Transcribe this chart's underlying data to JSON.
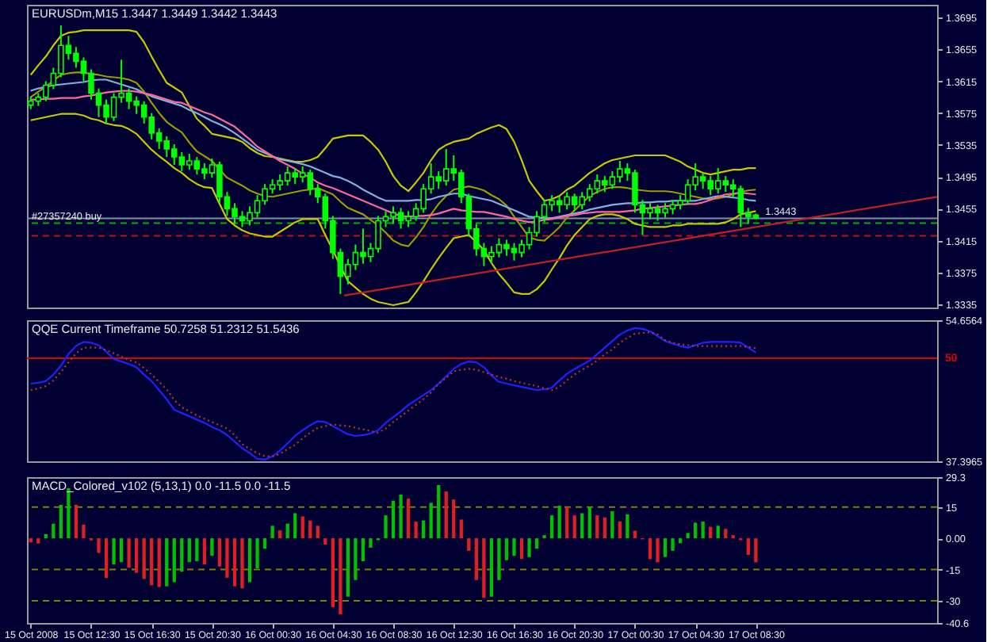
{
  "chart_data": [
    {
      "type": "candlestick",
      "title": "EURUSDm,M15 1.3447 1.3449 1.3442 1.3443",
      "color": "#00ff00",
      "x": [
        "2008-10-15T08:30",
        "2008-10-15T09:00",
        "2008-10-15T09:30",
        "2008-10-15T10:00",
        "2008-10-15T10:30",
        "2008-10-15T11:00",
        "2008-10-15T11:30",
        "2008-10-15T12:00",
        "2008-10-15T12:30",
        "2008-10-15T13:00",
        "2008-10-15T13:30",
        "2008-10-15T14:00",
        "2008-10-15T14:30",
        "2008-10-15T15:00",
        "2008-10-15T15:30",
        "2008-10-15T16:00",
        "2008-10-15T16:30",
        "2008-10-15T17:00",
        "2008-10-15T17:30",
        "2008-10-15T18:00",
        "2008-10-15T18:30",
        "2008-10-15T19:00",
        "2008-10-15T19:30",
        "2008-10-15T20:00",
        "2008-10-15T20:30",
        "2008-10-15T21:00",
        "2008-10-15T21:30",
        "2008-10-15T22:00",
        "2008-10-15T22:30",
        "2008-10-15T23:00",
        "2008-10-15T23:30",
        "2008-10-16T00:00",
        "2008-10-16T00:30",
        "2008-10-16T01:00",
        "2008-10-16T01:30",
        "2008-10-16T02:00",
        "2008-10-16T02:30",
        "2008-10-16T03:00",
        "2008-10-16T03:30",
        "2008-10-16T04:00",
        "2008-10-16T04:30",
        "2008-10-16T05:00",
        "2008-10-16T05:30",
        "2008-10-16T06:00",
        "2008-10-16T06:30",
        "2008-10-16T07:00",
        "2008-10-16T07:30",
        "2008-10-16T08:00",
        "2008-10-16T08:30",
        "2008-10-16T09:00",
        "2008-10-16T09:30",
        "2008-10-16T10:00",
        "2008-10-16T10:30",
        "2008-10-16T11:00",
        "2008-10-16T11:30",
        "2008-10-16T12:00",
        "2008-10-16T12:30",
        "2008-10-16T13:00",
        "2008-10-16T13:30",
        "2008-10-16T14:00",
        "2008-10-16T14:30",
        "2008-10-16T15:00",
        "2008-10-16T15:30",
        "2008-10-16T16:00",
        "2008-10-16T16:30",
        "2008-10-16T17:00",
        "2008-10-16T17:30",
        "2008-10-16T18:00",
        "2008-10-16T18:30",
        "2008-10-16T19:00",
        "2008-10-16T19:30",
        "2008-10-16T20:00",
        "2008-10-16T20:30",
        "2008-10-16T21:00",
        "2008-10-16T21:30",
        "2008-10-16T22:00",
        "2008-10-16T22:30",
        "2008-10-16T23:00",
        "2008-10-16T23:30",
        "2008-10-17T00:00",
        "2008-10-17T00:30",
        "2008-10-17T01:00",
        "2008-10-17T01:30",
        "2008-10-17T02:00",
        "2008-10-17T02:30",
        "2008-10-17T03:00",
        "2008-10-17T03:30",
        "2008-10-17T04:00",
        "2008-10-17T04:30",
        "2008-10-17T05:00",
        "2008-10-17T05:30",
        "2008-10-17T06:00",
        "2008-10-17T06:30",
        "2008-10-17T07:00",
        "2008-10-17T07:30",
        "2008-10-17T08:00",
        "2008-10-17T08:30"
      ],
      "ohlc": [
        [
          1.3585,
          1.3596,
          1.358,
          1.359
        ],
        [
          1.359,
          1.36,
          1.3584,
          1.3595
        ],
        [
          1.3595,
          1.3615,
          1.359,
          1.361
        ],
        [
          1.361,
          1.3632,
          1.3605,
          1.3625
        ],
        [
          1.3625,
          1.3685,
          1.362,
          1.366
        ],
        [
          1.366,
          1.3672,
          1.3642,
          1.365
        ],
        [
          1.365,
          1.3658,
          1.3632,
          1.364
        ],
        [
          1.364,
          1.3645,
          1.3615,
          1.3625
        ],
        [
          1.3625,
          1.363,
          1.3592,
          1.36
        ],
        [
          1.36,
          1.3606,
          1.357,
          1.3585
        ],
        [
          1.3585,
          1.3592,
          1.3562,
          1.357
        ],
        [
          1.357,
          1.36,
          1.3565,
          1.3595
        ],
        [
          1.3595,
          1.3642,
          1.3588,
          1.36
        ],
        [
          1.36,
          1.3606,
          1.358,
          1.359
        ],
        [
          1.359,
          1.3596,
          1.3574,
          1.3585
        ],
        [
          1.3585,
          1.359,
          1.3562,
          1.357
        ],
        [
          1.357,
          1.3575,
          1.3542,
          1.355
        ],
        [
          1.355,
          1.3556,
          1.353,
          1.354
        ],
        [
          1.354,
          1.3546,
          1.352,
          1.353
        ],
        [
          1.353,
          1.3536,
          1.351,
          1.352
        ],
        [
          1.352,
          1.3526,
          1.3502,
          1.351
        ],
        [
          1.351,
          1.3524,
          1.3504,
          1.3515
        ],
        [
          1.3515,
          1.352,
          1.3498,
          1.3505
        ],
        [
          1.3505,
          1.3512,
          1.3492,
          1.35
        ],
        [
          1.35,
          1.3518,
          1.3494,
          1.351
        ],
        [
          1.351,
          1.3514,
          1.3462,
          1.347
        ],
        [
          1.347,
          1.3476,
          1.3446,
          1.3455
        ],
        [
          1.3455,
          1.3462,
          1.3436,
          1.3445
        ],
        [
          1.3445,
          1.3452,
          1.3432,
          1.344
        ],
        [
          1.344,
          1.3458,
          1.3434,
          1.345
        ],
        [
          1.345,
          1.3472,
          1.3444,
          1.3465
        ],
        [
          1.3465,
          1.3486,
          1.346,
          1.348
        ],
        [
          1.348,
          1.3492,
          1.3474,
          1.3485
        ],
        [
          1.3485,
          1.3498,
          1.3478,
          1.349
        ],
        [
          1.349,
          1.3508,
          1.3484,
          1.35
        ],
        [
          1.35,
          1.3506,
          1.3486,
          1.3495
        ],
        [
          1.3495,
          1.3508,
          1.3488,
          1.35
        ],
        [
          1.35,
          1.3504,
          1.3472,
          1.348
        ],
        [
          1.348,
          1.3486,
          1.3462,
          1.347
        ],
        [
          1.347,
          1.3474,
          1.343,
          1.344
        ],
        [
          1.344,
          1.3446,
          1.3392,
          1.34
        ],
        [
          1.34,
          1.3405,
          1.3348,
          1.337
        ],
        [
          1.337,
          1.3392,
          1.336,
          1.3385
        ],
        [
          1.3385,
          1.341,
          1.3378,
          1.34
        ],
        [
          1.34,
          1.343,
          1.3386,
          1.3395
        ],
        [
          1.3395,
          1.3412,
          1.3388,
          1.3405
        ],
        [
          1.3405,
          1.3446,
          1.34,
          1.344
        ],
        [
          1.344,
          1.3452,
          1.3432,
          1.3445
        ],
        [
          1.3445,
          1.3458,
          1.3436,
          1.345
        ],
        [
          1.345,
          1.3456,
          1.343,
          1.344
        ],
        [
          1.344,
          1.3452,
          1.3432,
          1.3445
        ],
        [
          1.3445,
          1.3462,
          1.344,
          1.3455
        ],
        [
          1.3455,
          1.3486,
          1.345,
          1.348
        ],
        [
          1.348,
          1.3512,
          1.3474,
          1.3495
        ],
        [
          1.3495,
          1.3502,
          1.348,
          1.349
        ],
        [
          1.349,
          1.353,
          1.3484,
          1.3505
        ],
        [
          1.3505,
          1.3522,
          1.349,
          1.35
        ],
        [
          1.35,
          1.3504,
          1.3462,
          1.347
        ],
        [
          1.347,
          1.3474,
          1.342,
          1.343
        ],
        [
          1.343,
          1.3436,
          1.3396,
          1.3405
        ],
        [
          1.3405,
          1.3412,
          1.3383,
          1.3395
        ],
        [
          1.3395,
          1.3408,
          1.3386,
          1.34
        ],
        [
          1.34,
          1.3418,
          1.3394,
          1.341
        ],
        [
          1.341,
          1.3416,
          1.3396,
          1.3405
        ],
        [
          1.3405,
          1.3412,
          1.339,
          1.34
        ],
        [
          1.34,
          1.3416,
          1.3394,
          1.341
        ],
        [
          1.341,
          1.3432,
          1.3404,
          1.3425
        ],
        [
          1.3425,
          1.3452,
          1.342,
          1.3445
        ],
        [
          1.3445,
          1.3466,
          1.3438,
          1.346
        ],
        [
          1.346,
          1.3472,
          1.3452,
          1.3465
        ],
        [
          1.3465,
          1.347,
          1.345,
          1.346
        ],
        [
          1.346,
          1.3476,
          1.3454,
          1.347
        ],
        [
          1.347,
          1.3474,
          1.3452,
          1.346
        ],
        [
          1.346,
          1.3476,
          1.3454,
          1.347
        ],
        [
          1.347,
          1.3486,
          1.3464,
          1.348
        ],
        [
          1.348,
          1.3498,
          1.3474,
          1.349
        ],
        [
          1.349,
          1.3496,
          1.3476,
          1.3485
        ],
        [
          1.3485,
          1.3502,
          1.348,
          1.3495
        ],
        [
          1.3495,
          1.3515,
          1.3488,
          1.3505
        ],
        [
          1.3505,
          1.3512,
          1.349,
          1.35
        ],
        [
          1.35,
          1.3504,
          1.345,
          1.346
        ],
        [
          1.346,
          1.3466,
          1.3422,
          1.345
        ],
        [
          1.345,
          1.3462,
          1.3442,
          1.3455
        ],
        [
          1.3455,
          1.346,
          1.344,
          1.345
        ],
        [
          1.345,
          1.3462,
          1.3444,
          1.3455
        ],
        [
          1.3455,
          1.3466,
          1.3448,
          1.346
        ],
        [
          1.346,
          1.3472,
          1.3454,
          1.3465
        ],
        [
          1.3465,
          1.3492,
          1.346,
          1.3485
        ],
        [
          1.3485,
          1.3512,
          1.3478,
          1.3495
        ],
        [
          1.3495,
          1.35,
          1.348,
          1.349
        ],
        [
          1.349,
          1.3496,
          1.3472,
          1.348
        ],
        [
          1.348,
          1.3506,
          1.3474,
          1.349
        ],
        [
          1.349,
          1.3496,
          1.3476,
          1.3485
        ],
        [
          1.3485,
          1.3492,
          1.347,
          1.348
        ],
        [
          1.348,
          1.3484,
          1.3432,
          1.345
        ],
        [
          1.345,
          1.3456,
          1.3436,
          1.3445
        ],
        [
          1.3447,
          1.3449,
          1.3442,
          1.3443
        ]
      ],
      "series": [
        {
          "type": "line",
          "color": "#c8c800",
          "values": [
            1.3623,
            1.3635,
            1.3646,
            1.366,
            1.3672,
            1.3676,
            1.3677,
            1.3679,
            1.3679,
            1.3679,
            1.3679,
            1.3679,
            1.3679,
            1.3679,
            1.3677,
            1.3664,
            1.3646,
            1.3629,
            1.3613,
            1.3607,
            1.3601,
            1.3584,
            1.3568,
            1.3559,
            1.3549,
            1.3547,
            1.3545,
            1.3543,
            1.3539,
            1.3531,
            1.3525,
            1.3521,
            1.352,
            1.3518,
            1.3516,
            1.3514,
            1.3514,
            1.3516,
            1.352,
            1.3531,
            1.3543,
            1.3545,
            1.3547,
            1.3547,
            1.3547,
            1.3539,
            1.3529,
            1.3514,
            1.3496,
            1.3484,
            1.3477,
            1.3488,
            1.35,
            1.3516,
            1.3529,
            1.3535,
            1.3539,
            1.3541,
            1.3543,
            1.3549,
            1.3553,
            1.3557,
            1.356,
            1.3555,
            1.3539,
            1.3516,
            1.349,
            1.3477,
            1.3465,
            1.3467,
            1.3471,
            1.3479,
            1.3484,
            1.3492,
            1.35,
            1.3506,
            1.3512,
            1.3516,
            1.3518,
            1.352,
            1.3522,
            1.3522,
            1.3522,
            1.3522,
            1.3522,
            1.3518,
            1.3514,
            1.3508,
            1.3504,
            1.35,
            1.3498,
            1.35,
            1.3502,
            1.3504,
            1.3504,
            1.3506,
            1.3506
          ]
        },
        {
          "type": "line",
          "color": "#9a9a00",
          "values": [
            1.3595,
            1.3602,
            1.3608,
            1.3616,
            1.3623,
            1.3625,
            1.3626,
            1.3626,
            1.3624,
            1.3623,
            1.3621,
            1.362,
            1.3619,
            1.3617,
            1.3613,
            1.3602,
            1.3588,
            1.3575,
            1.3564,
            1.3557,
            1.3551,
            1.3538,
            1.3527,
            1.3521,
            1.3515,
            1.3504,
            1.3494,
            1.3489,
            1.3484,
            1.3478,
            1.3474,
            1.3471,
            1.347,
            1.3472,
            1.3474,
            1.3476,
            1.3478,
            1.3479,
            1.3481,
            1.3477,
            1.3473,
            1.3464,
            1.3456,
            1.3452,
            1.3448,
            1.3441,
            1.3434,
            1.3425,
            1.3415,
            1.341,
            1.3408,
            1.3419,
            1.3432,
            1.3448,
            1.3461,
            1.3471,
            1.3479,
            1.3481,
            1.3483,
            1.3481,
            1.3478,
            1.3472,
            1.3467,
            1.3459,
            1.3445,
            1.3432,
            1.3419,
            1.3416,
            1.3415,
            1.3423,
            1.3432,
            1.3444,
            1.3453,
            1.3462,
            1.3471,
            1.3476,
            1.348,
            1.3482,
            1.3482,
            1.3481,
            1.3479,
            1.3478,
            1.3477,
            1.3477,
            1.3477,
            1.3476,
            1.3474,
            1.3472,
            1.347,
            1.3468,
            1.3467,
            1.3468,
            1.347,
            1.3473,
            1.3476,
            1.3478,
            1.3479
          ]
        },
        {
          "type": "line",
          "color": "#c8c800",
          "values": [
            1.3566,
            1.3568,
            1.357,
            1.3572,
            1.3574,
            1.3574,
            1.3574,
            1.3572,
            1.3568,
            1.3566,
            1.3562,
            1.356,
            1.3559,
            1.3555,
            1.3549,
            1.3539,
            1.3529,
            1.3521,
            1.3514,
            1.3506,
            1.35,
            1.3492,
            1.3486,
            1.3482,
            1.3481,
            1.3461,
            1.3442,
            1.3434,
            1.3428,
            1.3424,
            1.3422,
            1.342,
            1.342,
            1.3426,
            1.3432,
            1.3438,
            1.3442,
            1.3442,
            1.3442,
            1.3422,
            1.3403,
            1.3383,
            1.3364,
            1.3356,
            1.3348,
            1.3342,
            1.3338,
            1.3336,
            1.3334,
            1.3336,
            1.3338,
            1.335,
            1.3364,
            1.3379,
            1.3393,
            1.3406,
            1.3418,
            1.342,
            1.3422,
            1.3413,
            1.3403,
            1.3387,
            1.3373,
            1.3362,
            1.335,
            1.3348,
            1.3348,
            1.3354,
            1.3364,
            1.3379,
            1.3393,
            1.3409,
            1.3422,
            1.3432,
            1.3442,
            1.3446,
            1.3448,
            1.3448,
            1.3446,
            1.3442,
            1.3436,
            1.3434,
            1.3432,
            1.3432,
            1.3432,
            1.3434,
            1.3434,
            1.3436,
            1.3436,
            1.3436,
            1.3436,
            1.3436,
            1.3438,
            1.3442,
            1.3448,
            1.345,
            1.3452
          ]
        },
        {
          "type": "line",
          "color": "#80b0e0",
          "values": [
            1.3603,
            1.3606,
            1.3608,
            1.361,
            1.3611,
            1.3612,
            1.3613,
            1.3614,
            1.3616,
            1.3617,
            1.3617,
            1.3614,
            1.3611,
            1.3608,
            1.3605,
            1.36,
            1.3596,
            1.3593,
            1.359,
            1.3587,
            1.3584,
            1.3579,
            1.3575,
            1.357,
            1.3565,
            1.3561,
            1.3556,
            1.355,
            1.3543,
            1.3536,
            1.3529,
            1.3525,
            1.3521,
            1.3517,
            1.3515,
            1.3513,
            1.3511,
            1.3508,
            1.3504,
            1.35,
            1.3496,
            1.3494,
            1.349,
            1.3485,
            1.3479,
            1.3474,
            1.3469,
            1.3465,
            1.3465,
            1.3465,
            1.3465,
            1.3466,
            1.3466,
            1.3467,
            1.347,
            1.3472,
            1.3474,
            1.3474,
            1.3471,
            1.3469,
            1.3467,
            1.3465,
            1.3461,
            1.3457,
            1.3453,
            1.3449,
            1.3445,
            1.3444,
            1.3443,
            1.3443,
            1.3445,
            1.3447,
            1.3449,
            1.3451,
            1.3454,
            1.3456,
            1.3458,
            1.346,
            1.3461,
            1.3462,
            1.3462,
            1.3463,
            1.3463,
            1.3464,
            1.3464,
            1.3465,
            1.3465,
            1.3465,
            1.3465,
            1.3467,
            1.3469,
            1.3471,
            1.347,
            1.3469,
            1.3468,
            1.3466,
            1.3465
          ]
        },
        {
          "type": "line",
          "color": "#ff6699",
          "values": [
            1.3592,
            1.3592,
            1.3593,
            1.3593,
            1.3594,
            1.3594,
            1.3594,
            1.3596,
            1.3597,
            1.3599,
            1.3601,
            1.3602,
            1.3603,
            1.3603,
            1.3602,
            1.36,
            1.3598,
            1.3595,
            1.3592,
            1.3589,
            1.3588,
            1.3584,
            1.358,
            1.3576,
            1.3573,
            1.3568,
            1.3563,
            1.3558,
            1.355,
            1.3542,
            1.3533,
            1.3527,
            1.3521,
            1.3515,
            1.351,
            1.3505,
            1.3499,
            1.3494,
            1.3488,
            1.3484,
            1.3481,
            1.3477,
            1.3473,
            1.3469,
            1.3465,
            1.3461,
            1.3457,
            1.3453,
            1.3449,
            1.3446,
            1.3445,
            1.3446,
            1.3446,
            1.3447,
            1.3449,
            1.3452,
            1.3455,
            1.3453,
            1.3452,
            1.3451,
            1.3451,
            1.3449,
            1.3447,
            1.3445,
            1.3442,
            1.344,
            1.3438,
            1.3439,
            1.3441,
            1.3442,
            1.3444,
            1.3446,
            1.3447,
            1.3449,
            1.345,
            1.3451,
            1.3451,
            1.3451,
            1.3451,
            1.3452,
            1.3453,
            1.3455,
            1.3456,
            1.3457,
            1.3458,
            1.3459,
            1.346,
            1.3461,
            1.3461,
            1.3463,
            1.3466,
            1.347,
            1.3473,
            1.3474,
            1.3475,
            1.3474,
            1.3473
          ]
        },
        {
          "type": "line",
          "color": "#c02020",
          "x": [
            "2008-10-16T05:15",
            "2008-10-17T20:30"
          ],
          "values": [
            1.3346,
            1.347
          ]
        }
      ],
      "xlim": [
        "2008-10-15T08:15",
        "2008-10-17T20:30"
      ],
      "ylim": [
        1.3331,
        1.3711
      ],
      "yticks": [
        1.3695,
        1.3655,
        1.3615,
        1.3575,
        1.3535,
        1.3495,
        1.3455,
        1.3415,
        1.3375,
        1.3335
      ],
      "ref_lines": [
        {
          "axis": "y",
          "value": 1.3443,
          "label": "1.3443",
          "color": "#8090a8",
          "line_style": "solid"
        },
        {
          "axis": "y",
          "value": 1.3437,
          "label": "#27357240 buy",
          "color": "#00b000",
          "line_style": "dashed"
        },
        {
          "axis": "y",
          "value": 1.3421,
          "color": "#c01010",
          "line_style": "dashed"
        }
      ],
      "tick_labels": "y"
    },
    {
      "type": "line",
      "title": "QQE Current Timeframe 50.7258 51.2312 51.5436",
      "x": [
        "2008-10-15T08:30",
        "2008-10-15T09:00",
        "2008-10-15T09:30",
        "2008-10-15T10:00",
        "2008-10-15T10:30",
        "2008-10-15T11:00",
        "2008-10-15T11:30",
        "2008-10-15T12:00",
        "2008-10-15T12:30",
        "2008-10-15T13:00",
        "2008-10-15T13:30",
        "2008-10-15T14:00",
        "2008-10-15T14:30",
        "2008-10-15T15:00",
        "2008-10-15T15:30",
        "2008-10-15T16:00",
        "2008-10-15T16:30",
        "2008-10-15T17:00",
        "2008-10-15T17:30",
        "2008-10-15T18:00",
        "2008-10-15T18:30",
        "2008-10-15T19:00",
        "2008-10-15T19:30",
        "2008-10-15T20:00",
        "2008-10-15T20:30",
        "2008-10-15T21:00",
        "2008-10-15T21:30",
        "2008-10-15T22:00",
        "2008-10-15T22:30",
        "2008-10-15T23:00",
        "2008-10-15T23:30",
        "2008-10-16T00:00",
        "2008-10-16T00:30",
        "2008-10-16T01:00",
        "2008-10-16T01:30",
        "2008-10-16T02:00",
        "2008-10-16T02:30",
        "2008-10-16T03:00",
        "2008-10-16T03:30",
        "2008-10-16T04:00",
        "2008-10-16T04:30",
        "2008-10-16T05:00",
        "2008-10-16T05:30",
        "2008-10-16T06:00",
        "2008-10-16T06:30",
        "2008-10-16T07:00",
        "2008-10-16T07:30",
        "2008-10-16T08:00",
        "2008-10-16T08:30",
        "2008-10-16T09:00",
        "2008-10-16T09:30",
        "2008-10-16T10:00",
        "2008-10-16T10:30",
        "2008-10-16T11:00",
        "2008-10-16T11:30",
        "2008-10-16T12:00",
        "2008-10-16T12:30",
        "2008-10-16T13:00",
        "2008-10-16T13:30",
        "2008-10-16T14:00",
        "2008-10-16T14:30",
        "2008-10-16T15:00",
        "2008-10-16T15:30",
        "2008-10-16T16:00",
        "2008-10-16T16:30",
        "2008-10-16T17:00",
        "2008-10-16T17:30",
        "2008-10-16T18:00",
        "2008-10-16T18:30",
        "2008-10-16T19:00",
        "2008-10-16T19:30",
        "2008-10-16T20:00",
        "2008-10-16T20:30",
        "2008-10-16T21:00",
        "2008-10-16T21:30",
        "2008-10-16T22:00",
        "2008-10-16T22:30",
        "2008-10-16T23:00",
        "2008-10-16T23:30",
        "2008-10-17T00:00",
        "2008-10-17T00:30",
        "2008-10-17T01:00",
        "2008-10-17T01:30",
        "2008-10-17T02:00",
        "2008-10-17T02:30",
        "2008-10-17T03:00",
        "2008-10-17T03:30",
        "2008-10-17T04:00",
        "2008-10-17T04:30",
        "2008-10-17T05:00",
        "2008-10-17T05:30",
        "2008-10-17T06:00",
        "2008-10-17T06:30",
        "2008-10-17T07:00",
        "2008-10-17T07:30",
        "2008-10-17T08:00",
        "2008-10-17T08:30"
      ],
      "series": [
        {
          "color": "#2020ff",
          "values": [
            46.9,
            47.0,
            47.2,
            48.0,
            49.1,
            50.5,
            51.5,
            52.0,
            51.9,
            51.6,
            50.8,
            49.9,
            49.6,
            49.3,
            48.9,
            48.0,
            47.2,
            46.1,
            45.0,
            43.7,
            43.3,
            42.9,
            42.5,
            42.1,
            41.6,
            41.2,
            40.6,
            39.8,
            39.0,
            38.4,
            37.7,
            37.6,
            38.0,
            38.7,
            39.6,
            40.5,
            41.2,
            41.8,
            42.3,
            42.2,
            41.7,
            41.2,
            40.7,
            40.5,
            40.6,
            40.8,
            41.2,
            42.1,
            42.8,
            43.5,
            44.3,
            44.9,
            45.5,
            46.1,
            46.9,
            47.8,
            48.7,
            49.3,
            49.6,
            49.5,
            48.9,
            47.9,
            47.1,
            46.9,
            46.7,
            46.5,
            46.3,
            46.1,
            46.2,
            46.4,
            47.3,
            48.1,
            48.7,
            49.2,
            49.7,
            50.5,
            51.3,
            52.1,
            52.9,
            53.4,
            53.7,
            53.6,
            53.3,
            52.7,
            52.1,
            51.8,
            51.5,
            51.3,
            51.6,
            51.9,
            52.0,
            52.0,
            52.0,
            52.0,
            51.9,
            51.3,
            50.7
          ]
        },
        {
          "color": "#c03030",
          "line_style": "dotted",
          "values": [
            46.1,
            46.3,
            46.6,
            47.3,
            48.3,
            49.5,
            50.6,
            51.3,
            51.3,
            51.3,
            51.0,
            50.6,
            50.2,
            49.8,
            49.5,
            48.8,
            48.0,
            47.1,
            46.2,
            44.9,
            44.0,
            43.5,
            43.0,
            42.6,
            42.2,
            41.8,
            41.4,
            40.6,
            39.5,
            38.9,
            38.4,
            38.0,
            38.0,
            38.3,
            38.9,
            39.4,
            40.2,
            40.9,
            41.5,
            41.7,
            41.9,
            41.8,
            41.7,
            41.5,
            41.3,
            41.1,
            40.9,
            41.4,
            42.2,
            42.9,
            43.6,
            44.3,
            45.0,
            45.8,
            46.9,
            47.6,
            48.4,
            48.6,
            48.7,
            48.6,
            48.3,
            48.0,
            47.7,
            47.5,
            47.2,
            47.0,
            46.8,
            46.6,
            46.3,
            46.1,
            46.5,
            47.3,
            48.0,
            48.6,
            49.1,
            49.7,
            50.5,
            51.1,
            51.9,
            52.5,
            53.0,
            53.1,
            53.2,
            52.9,
            52.2,
            51.9,
            51.7,
            51.6,
            51.5,
            51.5,
            51.5,
            51.5,
            51.5,
            51.5,
            51.5,
            51.4,
            51.2
          ]
        }
      ],
      "xlim": [
        "2008-10-15T08:15",
        "2008-10-17T20:30"
      ],
      "ylim": [
        37.3965,
        54.6564
      ],
      "yticks": [
        54.6564,
        37.3965
      ],
      "ref_lines": [
        {
          "axis": "y",
          "value": 50,
          "label": "50",
          "color": "#dd0000",
          "line_style": "solid"
        }
      ],
      "tick_labels": "y"
    },
    {
      "type": "bar",
      "title": "MACD_Colored_v102 (5,13,1) 0.0 -11.5 0.0 -11.5",
      "x": [
        "2008-10-15T08:30",
        "2008-10-15T09:00",
        "2008-10-15T09:30",
        "2008-10-15T10:00",
        "2008-10-15T10:30",
        "2008-10-15T11:00",
        "2008-10-15T11:30",
        "2008-10-15T12:00",
        "2008-10-15T12:30",
        "2008-10-15T13:00",
        "2008-10-15T13:30",
        "2008-10-15T14:00",
        "2008-10-15T14:30",
        "2008-10-15T15:00",
        "2008-10-15T15:30",
        "2008-10-15T16:00",
        "2008-10-15T16:30",
        "2008-10-15T17:00",
        "2008-10-15T17:30",
        "2008-10-15T18:00",
        "2008-10-15T18:30",
        "2008-10-15T19:00",
        "2008-10-15T19:30",
        "2008-10-15T20:00",
        "2008-10-15T20:30",
        "2008-10-15T21:00",
        "2008-10-15T21:30",
        "2008-10-15T22:00",
        "2008-10-15T22:30",
        "2008-10-15T23:00",
        "2008-10-15T23:30",
        "2008-10-16T00:00",
        "2008-10-16T00:30",
        "2008-10-16T01:00",
        "2008-10-16T01:30",
        "2008-10-16T02:00",
        "2008-10-16T02:30",
        "2008-10-16T03:00",
        "2008-10-16T03:30",
        "2008-10-16T04:00",
        "2008-10-16T04:30",
        "2008-10-16T05:00",
        "2008-10-16T05:30",
        "2008-10-16T06:00",
        "2008-10-16T06:30",
        "2008-10-16T07:00",
        "2008-10-16T07:30",
        "2008-10-16T08:00",
        "2008-10-16T08:30",
        "2008-10-16T09:00",
        "2008-10-16T09:30",
        "2008-10-16T10:00",
        "2008-10-16T10:30",
        "2008-10-16T11:00",
        "2008-10-16T11:30",
        "2008-10-16T12:00",
        "2008-10-16T12:30",
        "2008-10-16T13:00",
        "2008-10-16T13:30",
        "2008-10-16T14:00",
        "2008-10-16T14:30",
        "2008-10-16T15:00",
        "2008-10-16T15:30",
        "2008-10-16T16:00",
        "2008-10-16T16:30",
        "2008-10-16T17:00",
        "2008-10-16T17:30",
        "2008-10-16T18:00",
        "2008-10-16T18:30",
        "2008-10-16T19:00",
        "2008-10-16T19:30",
        "2008-10-16T20:00",
        "2008-10-16T20:30",
        "2008-10-16T21:00",
        "2008-10-16T21:30",
        "2008-10-16T22:00",
        "2008-10-16T22:30",
        "2008-10-16T23:00",
        "2008-10-16T23:30",
        "2008-10-17T00:00",
        "2008-10-17T00:30",
        "2008-10-17T01:00",
        "2008-10-17T01:30",
        "2008-10-17T02:00",
        "2008-10-17T02:30",
        "2008-10-17T03:00",
        "2008-10-17T03:30",
        "2008-10-17T04:00",
        "2008-10-17T04:30",
        "2008-10-17T05:00",
        "2008-10-17T05:30",
        "2008-10-17T06:00",
        "2008-10-17T06:30",
        "2008-10-17T07:00",
        "2008-10-17T07:30",
        "2008-10-17T08:00",
        "2008-10-17T08:30"
      ],
      "values": [
        -2,
        -2.5,
        2,
        7,
        16,
        24,
        16,
        6.5,
        -1,
        -7,
        -19,
        -12.5,
        -11.4,
        -14,
        -16.5,
        -19.5,
        -22.5,
        -23.4,
        -23,
        -21,
        -16,
        -11.4,
        -11,
        -12.5,
        -8.4,
        -13.5,
        -18.9,
        -23,
        -24,
        -21,
        -14.4,
        -5,
        6,
        3.8,
        7,
        12,
        10.5,
        8.5,
        6,
        -3,
        -33,
        -36.5,
        -28,
        -20,
        -11,
        -4.5,
        -0.9,
        11,
        18,
        21,
        19,
        8,
        8.5,
        17,
        25.5,
        22.5,
        18.6,
        9,
        -6,
        -20,
        -28.5,
        -28,
        -20,
        -10.5,
        -8.4,
        -9.9,
        -9,
        -5,
        1.5,
        11,
        15.6,
        15,
        11,
        12,
        15,
        11,
        10,
        13,
        8.1,
        11.5,
        3.6,
        -0.5,
        -10,
        -11.5,
        -9,
        -6,
        -2.4,
        2.5,
        7.5,
        8,
        5.5,
        6,
        4.5,
        1.5,
        -0.9,
        -8,
        -11.5
      ],
      "colors": [
        "#e02020",
        "#e02020",
        "#00c000",
        "#00c000",
        "#00c000",
        "#00c000",
        "#e02020",
        "#e02020",
        "#e02020",
        "#e02020",
        "#e02020",
        "#00c000",
        "#00c000",
        "#e02020",
        "#e02020",
        "#e02020",
        "#e02020",
        "#e02020",
        "#00c000",
        "#00c000",
        "#00c000",
        "#00c000",
        "#00c000",
        "#e02020",
        "#00c000",
        "#e02020",
        "#e02020",
        "#e02020",
        "#e02020",
        "#00c000",
        "#00c000",
        "#00c000",
        "#00c000",
        "#e02020",
        "#00c000",
        "#00c000",
        "#e02020",
        "#e02020",
        "#e02020",
        "#e02020",
        "#e02020",
        "#e02020",
        "#00c000",
        "#00c000",
        "#00c000",
        "#00c000",
        "#00c000",
        "#00c000",
        "#00c000",
        "#00c000",
        "#e02020",
        "#e02020",
        "#00c000",
        "#00c000",
        "#00c000",
        "#e02020",
        "#e02020",
        "#e02020",
        "#e02020",
        "#e02020",
        "#e02020",
        "#00c000",
        "#00c000",
        "#00c000",
        "#00c000",
        "#e02020",
        "#00c000",
        "#00c000",
        "#00c000",
        "#00c000",
        "#00c000",
        "#e02020",
        "#e02020",
        "#00c000",
        "#00c000",
        "#e02020",
        "#e02020",
        "#00c000",
        "#e02020",
        "#00c000",
        "#e02020",
        "#e02020",
        "#e02020",
        "#e02020",
        "#00c000",
        "#00c000",
        "#00c000",
        "#00c000",
        "#00c000",
        "#00c000",
        "#e02020",
        "#00c000",
        "#e02020",
        "#e02020",
        "#e02020",
        "#e02020",
        "#e02020"
      ],
      "xlim": [
        "2008-10-15T08:15",
        "2008-10-17T20:30"
      ],
      "xticks": [
        {
          "value": "2008-10-15T08:30",
          "label": "15 Oct 2008"
        },
        {
          "value": "2008-10-15T12:30",
          "label": "15 Oct 12:30"
        },
        {
          "value": "2008-10-15T16:30",
          "label": "15 Oct 16:30"
        },
        {
          "value": "2008-10-15T20:30",
          "label": "15 Oct 20:30"
        },
        {
          "value": "2008-10-16T00:30",
          "label": "16 Oct 00:30"
        },
        {
          "value": "2008-10-16T04:30",
          "label": "16 Oct 04:30"
        },
        {
          "value": "2008-10-16T08:30",
          "label": "16 Oct 08:30"
        },
        {
          "value": "2008-10-16T12:30",
          "label": "16 Oct 12:30"
        },
        {
          "value": "2008-10-16T16:30",
          "label": "16 Oct 16:30"
        },
        {
          "value": "2008-10-16T20:30",
          "label": "16 Oct 20:30"
        },
        {
          "value": "2008-10-17T00:30",
          "label": "17 Oct 00:30"
        },
        {
          "value": "2008-10-17T04:30",
          "label": "17 Oct 04:30"
        },
        {
          "value": "2008-10-17T08:30",
          "label": "17 Oct 08:30"
        }
      ],
      "ylim": [
        -40.6,
        29.3
      ],
      "yticks": [
        29.3,
        15,
        {
          "value": 0,
          "label": "0.00"
        },
        -15,
        -30,
        -40.6
      ],
      "ref_lines": [
        {
          "axis": "y",
          "value": 15,
          "color": "#808000",
          "line_style": "dashed"
        },
        {
          "axis": "y",
          "value": -15,
          "color": "#808000",
          "line_style": "dashed"
        },
        {
          "axis": "y",
          "value": -30,
          "color": "#808000",
          "line_style": "dashed"
        }
      ]
    }
  ]
}
